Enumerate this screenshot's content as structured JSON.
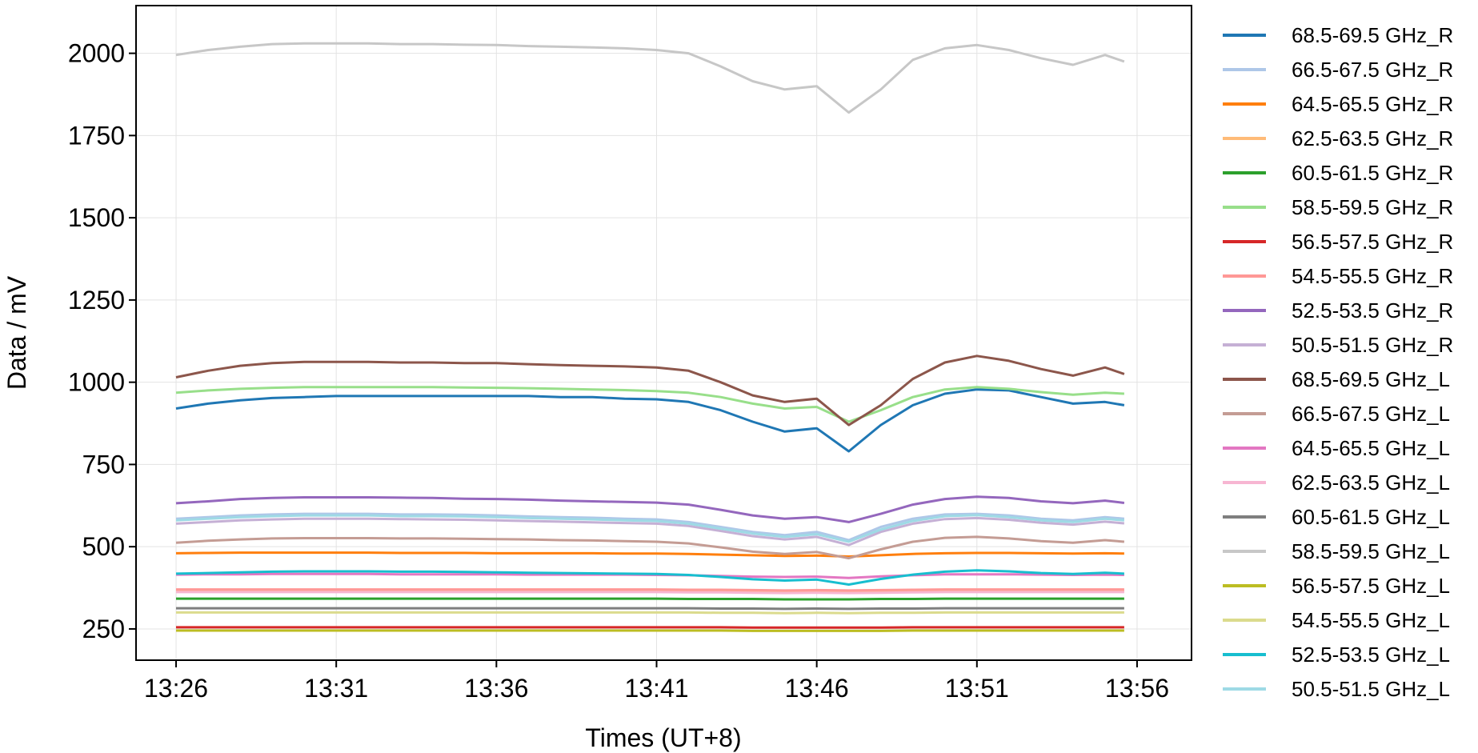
{
  "chart_data": {
    "type": "line",
    "xlabel": "Times (UT+8)",
    "ylabel": "Data / mV",
    "grid": true,
    "legend_position": "right, outside plot",
    "x_ticks": [
      "13:26",
      "13:31",
      "13:36",
      "13:41",
      "13:46",
      "13:51",
      "13:56"
    ],
    "x_tick_minutes": [
      0,
      5,
      10,
      15,
      20,
      25,
      30
    ],
    "xlim_minutes_since_13_26": [
      -1.25,
      31.7
    ],
    "y_ticks": [
      250,
      500,
      750,
      1000,
      1250,
      1500,
      1750,
      2000
    ],
    "ylim": [
      155,
      2145
    ],
    "x_minutes_since_13_26": [
      0,
      1,
      2,
      3,
      4,
      5,
      6,
      7,
      8,
      9,
      10,
      11,
      12,
      13,
      14,
      15,
      16,
      17,
      18,
      19,
      20,
      21,
      22,
      23,
      24,
      25,
      26,
      27,
      28,
      29,
      29.6
    ],
    "series": [
      {
        "name": "68.5-69.5 GHz_R",
        "color": "#1f77b4",
        "values": [
          920,
          935,
          945,
          952,
          955,
          958,
          958,
          958,
          958,
          958,
          958,
          958,
          955,
          955,
          950,
          948,
          940,
          915,
          880,
          850,
          860,
          790,
          870,
          930,
          965,
          978,
          975,
          955,
          935,
          940,
          930
        ]
      },
      {
        "name": "66.5-67.5 GHz_R",
        "color": "#aec7e8",
        "values": [
          585,
          590,
          595,
          598,
          600,
          600,
          600,
          598,
          598,
          597,
          595,
          592,
          590,
          588,
          585,
          583,
          575,
          560,
          545,
          535,
          545,
          520,
          560,
          585,
          598,
          600,
          595,
          585,
          580,
          590,
          585
        ]
      },
      {
        "name": "64.5-65.5 GHz_R",
        "color": "#ff7f0e",
        "values": [
          480,
          481,
          482,
          482,
          482,
          482,
          482,
          481,
          481,
          481,
          480,
          480,
          480,
          480,
          479,
          479,
          478,
          476,
          474,
          472,
          473,
          470,
          474,
          478,
          480,
          481,
          481,
          480,
          479,
          480,
          479
        ]
      },
      {
        "name": "62.5-63.5 GHz_R",
        "color": "#ffbb78",
        "values": [
          365,
          366,
          366,
          366,
          366,
          366,
          366,
          366,
          365,
          365,
          365,
          365,
          365,
          365,
          365,
          365,
          364,
          364,
          363,
          362,
          363,
          362,
          363,
          364,
          365,
          365,
          365,
          365,
          365,
          365,
          365
        ]
      },
      {
        "name": "60.5-61.5 GHz_R",
        "color": "#2ca02c",
        "values": [
          342,
          342,
          342,
          342,
          342,
          342,
          342,
          342,
          342,
          342,
          342,
          342,
          342,
          342,
          342,
          342,
          341,
          341,
          341,
          340,
          340,
          340,
          341,
          341,
          342,
          342,
          342,
          342,
          342,
          342,
          342
        ]
      },
      {
        "name": "58.5-59.5 GHz_R",
        "color": "#98df8a",
        "values": [
          968,
          975,
          980,
          983,
          985,
          985,
          985,
          985,
          985,
          984,
          983,
          982,
          980,
          978,
          976,
          973,
          968,
          955,
          935,
          920,
          925,
          880,
          915,
          955,
          978,
          985,
          980,
          970,
          962,
          968,
          965
        ]
      },
      {
        "name": "56.5-57.5 GHz_R",
        "color": "#d62728",
        "values": [
          255,
          255,
          255,
          255,
          255,
          255,
          255,
          255,
          255,
          255,
          255,
          255,
          255,
          255,
          255,
          255,
          255,
          255,
          254,
          254,
          254,
          254,
          254,
          255,
          255,
          255,
          255,
          255,
          255,
          255,
          255
        ]
      },
      {
        "name": "54.5-55.5 GHz_R",
        "color": "#ff9896",
        "values": [
          370,
          370,
          370,
          370,
          370,
          370,
          370,
          370,
          370,
          370,
          370,
          370,
          370,
          370,
          370,
          370,
          369,
          369,
          368,
          367,
          368,
          367,
          368,
          369,
          370,
          370,
          370,
          370,
          370,
          370,
          370
        ]
      },
      {
        "name": "52.5-53.5 GHz_R",
        "color": "#9467bd",
        "values": [
          632,
          638,
          645,
          648,
          650,
          650,
          650,
          649,
          648,
          646,
          645,
          643,
          640,
          638,
          636,
          634,
          628,
          612,
          595,
          585,
          590,
          575,
          600,
          628,
          645,
          652,
          648,
          638,
          632,
          640,
          633
        ]
      },
      {
        "name": "50.5-51.5 GHz_R",
        "color": "#c5b0d5",
        "values": [
          570,
          575,
          580,
          583,
          585,
          585,
          585,
          584,
          583,
          582,
          580,
          578,
          576,
          574,
          572,
          570,
          563,
          548,
          532,
          522,
          530,
          505,
          545,
          570,
          584,
          587,
          582,
          573,
          567,
          576,
          571
        ]
      },
      {
        "name": "68.5-69.5 GHz_L",
        "color": "#8c564b",
        "values": [
          1015,
          1035,
          1050,
          1058,
          1062,
          1062,
          1062,
          1060,
          1060,
          1058,
          1058,
          1055,
          1052,
          1050,
          1048,
          1045,
          1035,
          1000,
          960,
          940,
          950,
          870,
          930,
          1010,
          1060,
          1080,
          1065,
          1040,
          1020,
          1045,
          1025
        ]
      },
      {
        "name": "66.5-67.5 GHz_L",
        "color": "#c49c94",
        "values": [
          512,
          518,
          522,
          525,
          526,
          526,
          526,
          525,
          525,
          524,
          523,
          522,
          520,
          519,
          517,
          515,
          510,
          498,
          485,
          478,
          484,
          465,
          492,
          515,
          527,
          530,
          525,
          517,
          512,
          520,
          515
        ]
      },
      {
        "name": "64.5-65.5 GHz_L",
        "color": "#e377c2",
        "values": [
          415,
          416,
          416,
          417,
          417,
          417,
          417,
          416,
          416,
          416,
          416,
          415,
          415,
          415,
          415,
          414,
          413,
          411,
          409,
          408,
          409,
          405,
          410,
          413,
          416,
          416,
          416,
          415,
          414,
          415,
          414
        ]
      },
      {
        "name": "62.5-63.5 GHz_L",
        "color": "#f7b6d2",
        "values": [
          362,
          362,
          362,
          362,
          362,
          362,
          362,
          362,
          362,
          362,
          362,
          362,
          362,
          362,
          362,
          362,
          361,
          361,
          360,
          359,
          360,
          359,
          360,
          361,
          362,
          362,
          362,
          362,
          362,
          362,
          362
        ]
      },
      {
        "name": "60.5-61.5 GHz_L",
        "color": "#7f7f7f",
        "values": [
          313,
          313,
          313,
          313,
          313,
          313,
          313,
          313,
          313,
          313,
          313,
          313,
          313,
          313,
          313,
          313,
          313,
          312,
          312,
          311,
          312,
          311,
          312,
          312,
          313,
          313,
          313,
          313,
          313,
          313,
          313
        ]
      },
      {
        "name": "58.5-59.5 GHz_L",
        "color": "#c7c7c7",
        "values": [
          1995,
          2010,
          2020,
          2028,
          2030,
          2030,
          2030,
          2028,
          2028,
          2026,
          2025,
          2022,
          2020,
          2018,
          2015,
          2010,
          2000,
          1960,
          1915,
          1890,
          1900,
          1820,
          1890,
          1980,
          2015,
          2025,
          2010,
          1985,
          1965,
          1995,
          1975
        ]
      },
      {
        "name": "56.5-57.5 GHz_L",
        "color": "#bcbd22",
        "values": [
          245,
          245,
          245,
          245,
          245,
          245,
          245,
          245,
          245,
          245,
          245,
          245,
          245,
          245,
          245,
          245,
          245,
          245,
          244,
          244,
          244,
          244,
          244,
          245,
          245,
          245,
          245,
          245,
          245,
          245,
          245
        ]
      },
      {
        "name": "54.5-55.5 GHz_L",
        "color": "#dbdb8d",
        "values": [
          300,
          300,
          300,
          300,
          300,
          300,
          300,
          300,
          300,
          300,
          300,
          300,
          300,
          300,
          300,
          300,
          300,
          299,
          299,
          298,
          299,
          298,
          299,
          299,
          300,
          300,
          300,
          300,
          300,
          300,
          300
        ]
      },
      {
        "name": "52.5-53.5 GHz_L",
        "color": "#17becf",
        "values": [
          418,
          420,
          422,
          424,
          425,
          425,
          425,
          424,
          424,
          423,
          422,
          421,
          420,
          419,
          418,
          417,
          414,
          408,
          401,
          397,
          400,
          385,
          402,
          415,
          424,
          428,
          425,
          420,
          417,
          421,
          418
        ]
      },
      {
        "name": "50.5-51.5 GHz_L",
        "color": "#9edae5",
        "values": [
          580,
          585,
          590,
          593,
          595,
          595,
          595,
          593,
          593,
          592,
          590,
          587,
          585,
          583,
          580,
          578,
          570,
          555,
          540,
          530,
          538,
          515,
          552,
          578,
          593,
          596,
          590,
          580,
          575,
          585,
          580
        ]
      }
    ]
  }
}
